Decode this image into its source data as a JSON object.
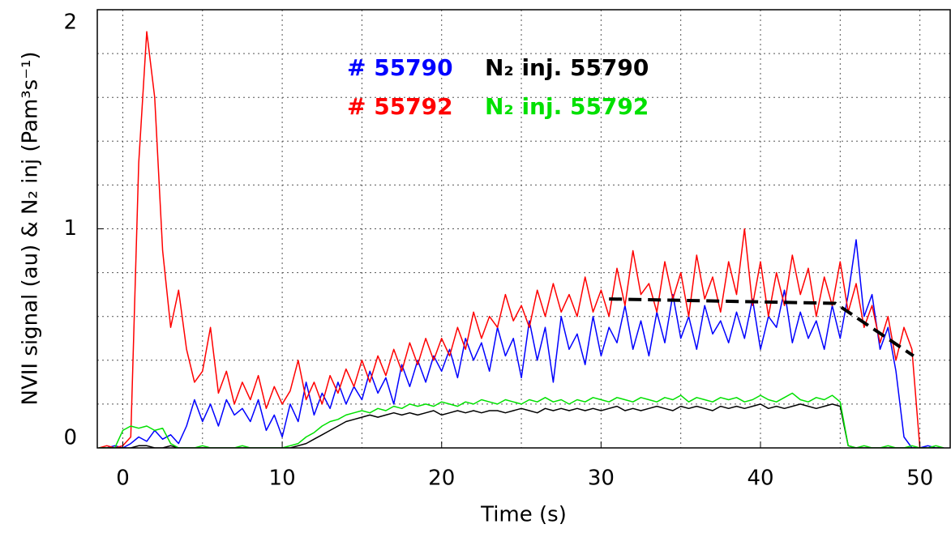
{
  "chart_data": {
    "type": "line",
    "x_label": "Time (s)",
    "y_label": "NVII signal (au) & N₂ inj (Pam³s⁻¹)",
    "xlim": [
      -1.6,
      51.9
    ],
    "ylim": [
      0,
      2
    ],
    "xticks": [
      0,
      10,
      20,
      30,
      40,
      50
    ],
    "yticks": [
      0,
      1,
      2
    ],
    "x_minor_grid": [
      5,
      15,
      25,
      35,
      45
    ],
    "y_minor_grid": [
      0.2,
      0.4,
      0.6,
      0.8,
      1.2,
      1.4,
      1.6,
      1.8
    ],
    "grid": true,
    "x": [
      -1.5,
      -1,
      -0.5,
      0,
      0.5,
      1,
      1.5,
      2,
      2.5,
      3,
      3.5,
      4,
      4.5,
      5,
      5.5,
      6,
      6.5,
      7,
      7.5,
      8,
      8.5,
      9,
      9.5,
      10,
      10.5,
      11,
      11.5,
      12,
      12.5,
      13,
      13.5,
      14,
      14.5,
      15,
      15.5,
      16,
      16.5,
      17,
      17.5,
      18,
      18.5,
      19,
      19.5,
      20,
      20.5,
      21,
      21.5,
      22,
      22.5,
      23,
      23.5,
      24,
      24.5,
      25,
      25.5,
      26,
      26.5,
      27,
      27.5,
      28,
      28.5,
      29,
      29.5,
      30,
      30.5,
      31,
      31.5,
      32,
      32.5,
      33,
      33.5,
      34,
      34.5,
      35,
      35.5,
      36,
      36.5,
      37,
      37.5,
      38,
      38.5,
      39,
      39.5,
      40,
      40.5,
      41,
      41.5,
      42,
      42.5,
      43,
      43.5,
      44,
      44.5,
      45,
      45.5,
      46,
      46.5,
      47,
      47.5,
      48,
      48.5,
      49,
      49.5,
      50,
      50.5,
      51,
      51.5
    ],
    "series": [
      {
        "name": "# 55790",
        "color": "#0000ff",
        "values": [
          0,
          0,
          0.01,
          0,
          0.02,
          0.05,
          0.03,
          0.08,
          0.04,
          0.06,
          0.02,
          0.1,
          0.22,
          0.12,
          0.2,
          0.1,
          0.22,
          0.15,
          0.18,
          0.12,
          0.22,
          0.08,
          0.15,
          0.05,
          0.2,
          0.12,
          0.3,
          0.15,
          0.25,
          0.18,
          0.3,
          0.2,
          0.28,
          0.22,
          0.35,
          0.25,
          0.32,
          0.2,
          0.38,
          0.28,
          0.4,
          0.3,
          0.42,
          0.35,
          0.45,
          0.32,
          0.5,
          0.4,
          0.48,
          0.35,
          0.55,
          0.42,
          0.5,
          0.32,
          0.58,
          0.4,
          0.55,
          0.3,
          0.6,
          0.45,
          0.52,
          0.38,
          0.6,
          0.42,
          0.55,
          0.48,
          0.65,
          0.45,
          0.58,
          0.42,
          0.62,
          0.48,
          0.7,
          0.5,
          0.6,
          0.45,
          0.65,
          0.52,
          0.58,
          0.48,
          0.62,
          0.5,
          0.68,
          0.45,
          0.6,
          0.55,
          0.72,
          0.48,
          0.62,
          0.5,
          0.58,
          0.45,
          0.65,
          0.5,
          0.7,
          0.95,
          0.6,
          0.7,
          0.45,
          0.55,
          0.35,
          0.05,
          0,
          0,
          0.01,
          0,
          0
        ]
      },
      {
        "name": "# 55792",
        "color": "#ff0000",
        "values": [
          0,
          0.01,
          0,
          0.01,
          0.05,
          1.3,
          1.9,
          1.6,
          0.9,
          0.55,
          0.72,
          0.45,
          0.3,
          0.35,
          0.55,
          0.25,
          0.35,
          0.2,
          0.3,
          0.22,
          0.33,
          0.18,
          0.28,
          0.2,
          0.26,
          0.4,
          0.22,
          0.3,
          0.2,
          0.33,
          0.25,
          0.36,
          0.28,
          0.4,
          0.3,
          0.42,
          0.33,
          0.45,
          0.35,
          0.48,
          0.38,
          0.5,
          0.4,
          0.5,
          0.42,
          0.55,
          0.45,
          0.62,
          0.5,
          0.6,
          0.55,
          0.7,
          0.58,
          0.65,
          0.55,
          0.72,
          0.6,
          0.75,
          0.62,
          0.7,
          0.6,
          0.78,
          0.62,
          0.72,
          0.6,
          0.82,
          0.65,
          0.9,
          0.7,
          0.75,
          0.62,
          0.85,
          0.68,
          0.8,
          0.6,
          0.88,
          0.68,
          0.78,
          0.62,
          0.85,
          0.7,
          1.0,
          0.65,
          0.85,
          0.6,
          0.8,
          0.65,
          0.88,
          0.7,
          0.82,
          0.6,
          0.78,
          0.65,
          0.85,
          0.62,
          0.75,
          0.55,
          0.65,
          0.48,
          0.6,
          0.4,
          0.55,
          0.45,
          0,
          null,
          null,
          null
        ]
      },
      {
        "name": "N₂ inj. 55790",
        "color": "#000000",
        "values": [
          0,
          0,
          0,
          0,
          0,
          0.01,
          0.01,
          0,
          0,
          0.01,
          0,
          0,
          0,
          0,
          0,
          0,
          0,
          0,
          0,
          0,
          0,
          0,
          0,
          0,
          0,
          0.01,
          0.02,
          0.04,
          0.06,
          0.08,
          0.1,
          0.12,
          0.13,
          0.14,
          0.15,
          0.14,
          0.15,
          0.16,
          0.15,
          0.16,
          0.15,
          0.16,
          0.17,
          0.15,
          0.16,
          0.17,
          0.16,
          0.17,
          0.16,
          0.17,
          0.17,
          0.16,
          0.17,
          0.18,
          0.17,
          0.16,
          0.18,
          0.17,
          0.18,
          0.17,
          0.18,
          0.17,
          0.18,
          0.17,
          0.18,
          0.19,
          0.17,
          0.18,
          0.17,
          0.18,
          0.19,
          0.18,
          0.17,
          0.19,
          0.18,
          0.19,
          0.18,
          0.17,
          0.19,
          0.18,
          0.19,
          0.18,
          0.19,
          0.2,
          0.18,
          0.19,
          0.18,
          0.19,
          0.2,
          0.19,
          0.18,
          0.19,
          0.2,
          0.19,
          0.01,
          0,
          0,
          0,
          0,
          0,
          0,
          0,
          0,
          0,
          0,
          0,
          0
        ]
      },
      {
        "name": "N₂ inj. 55792",
        "color": "#00e000",
        "values": [
          0,
          0,
          0,
          0.08,
          0.1,
          0.09,
          0.1,
          0.08,
          0.09,
          0.02,
          0,
          0,
          0,
          0.01,
          0,
          0,
          0,
          0,
          0.01,
          0,
          0,
          0,
          0,
          0,
          0.01,
          0.02,
          0.05,
          0.07,
          0.1,
          0.12,
          0.13,
          0.15,
          0.16,
          0.17,
          0.16,
          0.18,
          0.17,
          0.19,
          0.18,
          0.2,
          0.19,
          0.2,
          0.19,
          0.21,
          0.2,
          0.19,
          0.21,
          0.2,
          0.22,
          0.21,
          0.2,
          0.22,
          0.21,
          0.2,
          0.22,
          0.21,
          0.23,
          0.21,
          0.22,
          0.2,
          0.22,
          0.21,
          0.23,
          0.22,
          0.21,
          0.23,
          0.22,
          0.21,
          0.23,
          0.22,
          0.21,
          0.23,
          0.22,
          0.24,
          0.21,
          0.23,
          0.22,
          0.21,
          0.23,
          0.22,
          0.23,
          0.21,
          0.22,
          0.24,
          0.22,
          0.21,
          0.23,
          0.25,
          0.22,
          0.21,
          0.23,
          0.22,
          0.24,
          0.21,
          0.01,
          0,
          0.01,
          0,
          0,
          0.01,
          0,
          0,
          0.01,
          0,
          0,
          0.01,
          0
        ]
      },
      {
        "color": "#000000",
        "dashed": true,
        "x": [
          30.5,
          44.7,
          49.6
        ],
        "values": [
          0.68,
          0.66,
          0.42
        ]
      }
    ]
  }
}
